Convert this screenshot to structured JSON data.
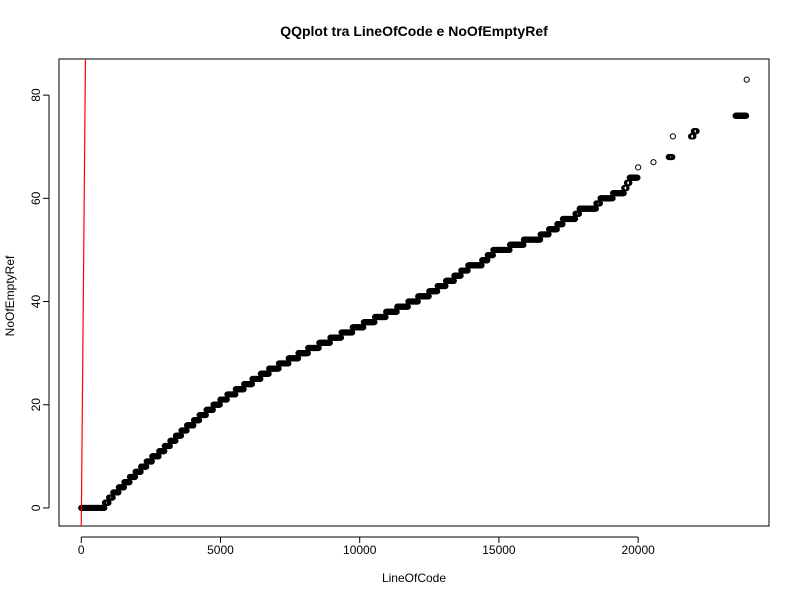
{
  "chart_data": {
    "type": "scatter",
    "title": "QQplot tra LineOfCode e NoOfEmptyRef",
    "xlabel": "LineOfCode",
    "ylabel": "NoOfEmptyRef",
    "xlim": [
      -800,
      24700
    ],
    "ylim": [
      -3.5,
      87
    ],
    "xticks": [
      0,
      5000,
      10000,
      15000,
      20000
    ],
    "xtick_labels": [
      "0",
      "5000",
      "10000",
      "15000",
      "20000"
    ],
    "yticks": [
      0,
      20,
      40,
      60,
      80
    ],
    "ytick_labels": [
      "0",
      "20",
      "40",
      "60",
      "80"
    ],
    "grid": false,
    "legend": "none",
    "colors": {
      "points": "#000000",
      "reference_line": "#ff0000",
      "axes": "#000000"
    },
    "reference_line": {
      "x": [
        0,
        150
      ],
      "y": [
        -3.5,
        87
      ]
    },
    "series": [
      {
        "values": [
          {
            "x": 0,
            "y": 0
          },
          {
            "x": 100,
            "y": 0
          },
          {
            "x": 200,
            "y": 0
          },
          {
            "x": 300,
            "y": 0
          },
          {
            "x": 400,
            "y": 0
          },
          {
            "x": 500,
            "y": 0
          },
          {
            "x": 600,
            "y": 0
          },
          {
            "x": 700,
            "y": 0
          },
          {
            "x": 850,
            "y": 1
          },
          {
            "x": 1000,
            "y": 2
          },
          {
            "x": 1150,
            "y": 3
          },
          {
            "x": 1350,
            "y": 4
          },
          {
            "x": 1550,
            "y": 5
          },
          {
            "x": 1750,
            "y": 6
          },
          {
            "x": 1950,
            "y": 7
          },
          {
            "x": 2150,
            "y": 8
          },
          {
            "x": 2350,
            "y": 9
          },
          {
            "x": 2550,
            "y": 10
          },
          {
            "x": 2800,
            "y": 11
          },
          {
            "x": 3000,
            "y": 12
          },
          {
            "x": 3200,
            "y": 13
          },
          {
            "x": 3400,
            "y": 14
          },
          {
            "x": 3600,
            "y": 15
          },
          {
            "x": 3800,
            "y": 16
          },
          {
            "x": 4050,
            "y": 17
          },
          {
            "x": 4250,
            "y": 18
          },
          {
            "x": 4500,
            "y": 19
          },
          {
            "x": 4750,
            "y": 20
          },
          {
            "x": 5000,
            "y": 21
          },
          {
            "x": 5250,
            "y": 22
          },
          {
            "x": 5550,
            "y": 23
          },
          {
            "x": 5850,
            "y": 24
          },
          {
            "x": 6150,
            "y": 25
          },
          {
            "x": 6450,
            "y": 26
          },
          {
            "x": 6750,
            "y": 27
          },
          {
            "x": 7100,
            "y": 28
          },
          {
            "x": 7450,
            "y": 29
          },
          {
            "x": 7800,
            "y": 30
          },
          {
            "x": 8150,
            "y": 31
          },
          {
            "x": 8550,
            "y": 32
          },
          {
            "x": 8950,
            "y": 33
          },
          {
            "x": 9350,
            "y": 34
          },
          {
            "x": 9750,
            "y": 35
          },
          {
            "x": 10150,
            "y": 36
          },
          {
            "x": 10550,
            "y": 37
          },
          {
            "x": 10950,
            "y": 38
          },
          {
            "x": 11350,
            "y": 39
          },
          {
            "x": 11750,
            "y": 40
          },
          {
            "x": 12100,
            "y": 41
          },
          {
            "x": 12500,
            "y": 42
          },
          {
            "x": 12800,
            "y": 43
          },
          {
            "x": 13100,
            "y": 44
          },
          {
            "x": 13400,
            "y": 45
          },
          {
            "x": 13650,
            "y": 46
          },
          {
            "x": 13900,
            "y": 47
          },
          {
            "x": 14150,
            "y": 47
          },
          {
            "x": 14400,
            "y": 48
          },
          {
            "x": 14600,
            "y": 49
          },
          {
            "x": 14800,
            "y": 50
          },
          {
            "x": 15100,
            "y": 50
          },
          {
            "x": 15400,
            "y": 51
          },
          {
            "x": 15700,
            "y": 51
          },
          {
            "x": 15900,
            "y": 52
          },
          {
            "x": 16200,
            "y": 52
          },
          {
            "x": 16500,
            "y": 53
          },
          {
            "x": 16800,
            "y": 54
          },
          {
            "x": 17100,
            "y": 55
          },
          {
            "x": 17300,
            "y": 56
          },
          {
            "x": 17550,
            "y": 56
          },
          {
            "x": 17750,
            "y": 57
          },
          {
            "x": 17900,
            "y": 58
          },
          {
            "x": 18100,
            "y": 58
          },
          {
            "x": 18300,
            "y": 58
          },
          {
            "x": 18500,
            "y": 59
          },
          {
            "x": 18650,
            "y": 60
          },
          {
            "x": 18900,
            "y": 60
          },
          {
            "x": 19100,
            "y": 61
          },
          {
            "x": 19300,
            "y": 61
          },
          {
            "x": 19500,
            "y": 62
          },
          {
            "x": 19600,
            "y": 63
          },
          {
            "x": 19700,
            "y": 64
          },
          {
            "x": 19850,
            "y": 64
          },
          {
            "x": 20000,
            "y": 66
          },
          {
            "x": 20550,
            "y": 67
          },
          {
            "x": 21100,
            "y": 68
          },
          {
            "x": 21250,
            "y": 72
          },
          {
            "x": 21900,
            "y": 72
          },
          {
            "x": 22000,
            "y": 73
          },
          {
            "x": 22100,
            "y": 73
          },
          {
            "x": 23500,
            "y": 76
          },
          {
            "x": 23900,
            "y": 83
          }
        ]
      }
    ]
  }
}
